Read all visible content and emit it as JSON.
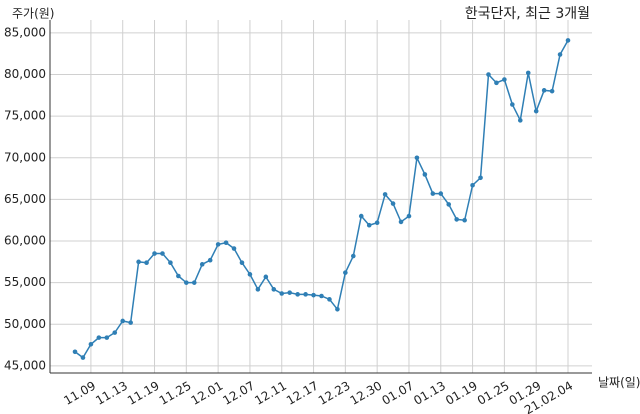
{
  "chart_data": {
    "type": "line",
    "title": "한국단자, 최근 3개월",
    "y_label": "주가(원)",
    "x_label": "날짜(일)",
    "categories": [
      null,
      null,
      "11.09",
      null,
      null,
      null,
      "11.13",
      null,
      null,
      null,
      "11.19",
      null,
      null,
      null,
      "11.25",
      null,
      null,
      null,
      "12.01",
      null,
      null,
      null,
      "12.07",
      null,
      null,
      null,
      "12.11",
      null,
      null,
      null,
      "12.17",
      null,
      null,
      null,
      "12.23",
      null,
      null,
      null,
      "12.30",
      null,
      null,
      null,
      "01.07",
      null,
      null,
      null,
      "01.13",
      null,
      null,
      null,
      "01.19",
      null,
      null,
      null,
      "01.25",
      null,
      null,
      null,
      "01.29",
      null,
      null,
      null,
      "21.02.04"
    ],
    "values": [
      46700,
      46000,
      47600,
      48400,
      48400,
      49000,
      50400,
      50200,
      57500,
      57400,
      58500,
      58500,
      57400,
      55800,
      55000,
      55000,
      57200,
      57700,
      59600,
      59800,
      59100,
      57400,
      56000,
      54200,
      55700,
      54200,
      53700,
      53800,
      53600,
      53600,
      53500,
      53400,
      53000,
      51800,
      56200,
      58200,
      63000,
      61900,
      62200,
      65600,
      64500,
      62300,
      63000,
      70000,
      68000,
      65700,
      65700,
      64400,
      62600,
      62500,
      66700,
      67600,
      80000,
      79000,
      79400,
      76400,
      74500,
      80200,
      75600,
      78100,
      78000,
      82400,
      84100
    ],
    "color": "#2f7fb5",
    "ylim": [
      44150,
      86550
    ],
    "yticks": [
      {
        "value": 45000,
        "label": "45,000"
      },
      {
        "value": 50000,
        "label": "50,000"
      },
      {
        "value": 55000,
        "label": "55,000"
      },
      {
        "value": 60000,
        "label": "60,000"
      },
      {
        "value": 65000,
        "label": "65,000"
      },
      {
        "value": 70000,
        "label": "70,000"
      },
      {
        "value": 75000,
        "label": "75,000"
      },
      {
        "value": 80000,
        "label": "80,000"
      },
      {
        "value": 85000,
        "label": "85,000"
      }
    ],
    "grid": true
  }
}
